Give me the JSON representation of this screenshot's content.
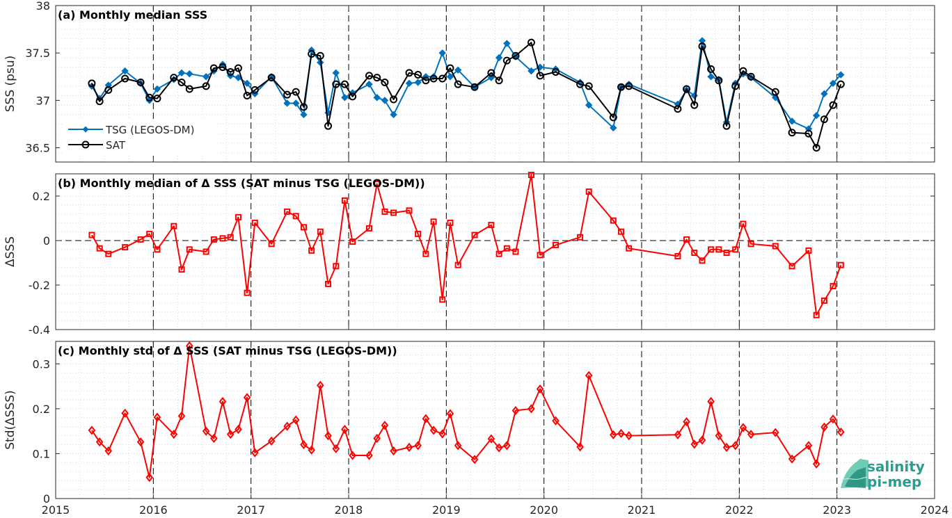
{
  "chart_data": [
    {
      "type": "line",
      "title": "(a) Monthly median SSS",
      "ylabel": "SSS (psu)",
      "xlim": [
        2015,
        2024
      ],
      "ylim": [
        36.35,
        38
      ],
      "yticks": [
        36.5,
        37,
        37.5,
        38
      ],
      "ytick_labels": [
        "36.5",
        "37",
        "37.5",
        "38"
      ],
      "grid": true,
      "legend_position": "bottom-left",
      "series": [
        {
          "name": "TSG (LEGOS-DM)",
          "color": "#0072BD",
          "marker": "diamond-filled",
          "x": [
            2015.37,
            2015.45,
            2015.54,
            2015.71,
            2015.87,
            2015.96,
            2016.04,
            2016.21,
            2016.29,
            2016.37,
            2016.54,
            2016.62,
            2016.71,
            2016.79,
            2016.87,
            2016.96,
            2017.04,
            2017.21,
            2017.37,
            2017.46,
            2017.54,
            2017.62,
            2017.71,
            2017.79,
            2017.87,
            2017.96,
            2018.04,
            2018.21,
            2018.29,
            2018.37,
            2018.46,
            2018.62,
            2018.71,
            2018.79,
            2018.87,
            2018.96,
            2019.04,
            2019.12,
            2019.29,
            2019.46,
            2019.54,
            2019.62,
            2019.71,
            2019.87,
            2019.96,
            2020.12,
            2020.37,
            2020.46,
            2020.71,
            2020.79,
            2020.87,
            2021.37,
            2021.46,
            2021.54,
            2021.62,
            2021.71,
            2021.79,
            2021.87,
            2021.96,
            2022.04,
            2022.12,
            2022.37,
            2022.54,
            2022.71,
            2022.79,
            2022.87,
            2022.96,
            2023.04
          ],
          "y": [
            37.15,
            37.02,
            37.16,
            37.31,
            37.18,
            37.0,
            37.12,
            37.22,
            37.29,
            37.28,
            37.25,
            37.31,
            37.38,
            37.26,
            37.24,
            37.18,
            37.07,
            37.25,
            36.97,
            36.97,
            36.85,
            37.53,
            37.4,
            36.87,
            37.29,
            37.03,
            37.08,
            37.17,
            37.03,
            37.0,
            36.85,
            37.18,
            37.19,
            37.25,
            37.25,
            37.5,
            37.25,
            37.32,
            37.14,
            37.24,
            37.45,
            37.6,
            37.46,
            37.31,
            37.35,
            37.33,
            37.19,
            36.95,
            36.71,
            37.14,
            37.17,
            36.96,
            37.11,
            37.05,
            37.63,
            37.25,
            37.22,
            36.77,
            37.18,
            37.28,
            37.24,
            37.03,
            36.78,
            36.7,
            36.84,
            37.07,
            37.18,
            37.27
          ]
        },
        {
          "name": "SAT",
          "color": "#000000",
          "marker": "circle-open",
          "x": [
            2015.37,
            2015.45,
            2015.54,
            2015.71,
            2015.87,
            2015.96,
            2016.04,
            2016.21,
            2016.29,
            2016.37,
            2016.54,
            2016.62,
            2016.71,
            2016.79,
            2016.87,
            2016.96,
            2017.04,
            2017.21,
            2017.37,
            2017.46,
            2017.54,
            2017.62,
            2017.71,
            2017.79,
            2017.87,
            2017.96,
            2018.04,
            2018.21,
            2018.29,
            2018.37,
            2018.46,
            2018.62,
            2018.71,
            2018.79,
            2018.87,
            2018.96,
            2019.04,
            2019.12,
            2019.29,
            2019.46,
            2019.54,
            2019.62,
            2019.71,
            2019.87,
            2019.96,
            2020.12,
            2020.37,
            2020.46,
            2020.71,
            2020.79,
            2020.87,
            2021.37,
            2021.46,
            2021.54,
            2021.62,
            2021.71,
            2021.79,
            2021.87,
            2021.96,
            2022.04,
            2022.12,
            2022.37,
            2022.54,
            2022.71,
            2022.79,
            2022.87,
            2022.96,
            2023.04
          ],
          "y": [
            37.18,
            36.99,
            37.11,
            37.23,
            37.19,
            37.03,
            37.02,
            37.24,
            37.19,
            37.12,
            37.15,
            37.34,
            37.35,
            37.3,
            37.34,
            37.05,
            37.11,
            37.24,
            37.06,
            37.09,
            36.93,
            37.49,
            37.47,
            36.73,
            37.17,
            37.17,
            37.04,
            37.26,
            37.24,
            37.19,
            37.01,
            37.29,
            37.27,
            37.21,
            37.23,
            37.23,
            37.34,
            37.17,
            37.14,
            37.29,
            37.21,
            37.42,
            37.47,
            37.61,
            37.26,
            37.3,
            37.17,
            37.15,
            36.82,
            37.14,
            37.15,
            36.91,
            37.12,
            36.95,
            37.57,
            37.33,
            37.21,
            36.73,
            37.15,
            37.31,
            37.25,
            37.09,
            36.66,
            36.65,
            36.5,
            36.8,
            36.95,
            37.17
          ]
        }
      ]
    },
    {
      "type": "line",
      "title": "(b) Monthly median of Δ SSS (SAT minus TSG (LEGOS-DM))",
      "ylabel": "ΔSSS",
      "xlim": [
        2015,
        2024
      ],
      "ylim": [
        -0.4,
        0.3
      ],
      "yticks": [
        -0.4,
        -0.2,
        0,
        0.2
      ],
      "ytick_labels": [
        "-0.4",
        "-0.2",
        "0",
        "0.2"
      ],
      "zero_line": true,
      "grid": true,
      "series": [
        {
          "color": "#FF0000",
          "marker": "square-open",
          "x": [
            2015.37,
            2015.45,
            2015.54,
            2015.71,
            2015.87,
            2015.96,
            2016.04,
            2016.21,
            2016.29,
            2016.37,
            2016.54,
            2016.62,
            2016.71,
            2016.79,
            2016.87,
            2016.96,
            2017.04,
            2017.21,
            2017.37,
            2017.46,
            2017.54,
            2017.62,
            2017.71,
            2017.79,
            2017.87,
            2017.96,
            2018.04,
            2018.21,
            2018.29,
            2018.37,
            2018.46,
            2018.62,
            2018.71,
            2018.79,
            2018.87,
            2018.96,
            2019.04,
            2019.12,
            2019.29,
            2019.46,
            2019.54,
            2019.62,
            2019.71,
            2019.87,
            2019.96,
            2020.12,
            2020.37,
            2020.46,
            2020.71,
            2020.79,
            2020.87,
            2021.37,
            2021.46,
            2021.54,
            2021.62,
            2021.71,
            2021.79,
            2021.87,
            2021.96,
            2022.04,
            2022.12,
            2022.37,
            2022.54,
            2022.71,
            2022.79,
            2022.87,
            2022.96,
            2023.04
          ],
          "y": [
            0.025,
            -0.035,
            -0.06,
            -0.03,
            0.005,
            0.03,
            -0.04,
            0.065,
            -0.13,
            -0.04,
            -0.05,
            0.005,
            0.01,
            0.015,
            0.105,
            -0.235,
            0.08,
            -0.015,
            0.13,
            0.11,
            0.06,
            -0.045,
            0.04,
            -0.195,
            -0.115,
            0.18,
            -0.005,
            0.055,
            0.255,
            0.13,
            0.125,
            0.135,
            0.03,
            -0.06,
            0.085,
            -0.265,
            0.08,
            -0.11,
            0.025,
            0.07,
            -0.06,
            -0.035,
            -0.05,
            0.295,
            -0.065,
            -0.02,
            0.015,
            0.22,
            0.09,
            0.04,
            -0.035,
            -0.07,
            0.005,
            -0.055,
            -0.09,
            -0.04,
            -0.04,
            -0.055,
            -0.04,
            0.075,
            -0.015,
            -0.025,
            -0.115,
            -0.045,
            -0.335,
            -0.27,
            -0.205,
            -0.11
          ]
        }
      ]
    },
    {
      "type": "line",
      "title": "(c) Monthly std of Δ SSS (SAT minus TSG (LEGOS-DM))",
      "ylabel": "Std(ΔSSS)",
      "xlim": [
        2015,
        2024
      ],
      "ylim": [
        0,
        0.35
      ],
      "yticks": [
        0,
        0.1,
        0.2,
        0.3
      ],
      "ytick_labels": [
        "0",
        "0.1",
        "0.2",
        "0.3"
      ],
      "xticks": [
        2015,
        2016,
        2017,
        2018,
        2019,
        2020,
        2021,
        2022,
        2023,
        2024
      ],
      "xtick_labels": [
        "2015",
        "2016",
        "2017",
        "2018",
        "2019",
        "2020",
        "2021",
        "2022",
        "2023",
        "2024"
      ],
      "grid": true,
      "series": [
        {
          "color": "#FF0000",
          "marker": "diamond-open",
          "x": [
            2015.37,
            2015.45,
            2015.54,
            2015.71,
            2015.87,
            2015.96,
            2016.04,
            2016.21,
            2016.29,
            2016.37,
            2016.54,
            2016.62,
            2016.71,
            2016.79,
            2016.87,
            2016.96,
            2017.04,
            2017.21,
            2017.37,
            2017.46,
            2017.54,
            2017.62,
            2017.71,
            2017.79,
            2017.87,
            2017.96,
            2018.04,
            2018.21,
            2018.29,
            2018.37,
            2018.46,
            2018.62,
            2018.71,
            2018.79,
            2018.87,
            2018.96,
            2019.04,
            2019.12,
            2019.29,
            2019.46,
            2019.54,
            2019.62,
            2019.71,
            2019.87,
            2019.96,
            2020.12,
            2020.37,
            2020.46,
            2020.71,
            2020.79,
            2020.87,
            2021.37,
            2021.46,
            2021.54,
            2021.62,
            2021.71,
            2021.79,
            2021.87,
            2021.96,
            2022.04,
            2022.12,
            2022.37,
            2022.54,
            2022.71,
            2022.79,
            2022.87,
            2022.96,
            2023.04
          ],
          "y": [
            0.152,
            0.126,
            0.106,
            0.19,
            0.126,
            0.047,
            0.181,
            0.143,
            0.184,
            0.34,
            0.15,
            0.134,
            0.216,
            0.143,
            0.154,
            0.225,
            0.102,
            0.128,
            0.161,
            0.175,
            0.12,
            0.108,
            0.252,
            0.14,
            0.111,
            0.154,
            0.096,
            0.096,
            0.134,
            0.163,
            0.106,
            0.114,
            0.118,
            0.178,
            0.152,
            0.144,
            0.189,
            0.118,
            0.087,
            0.133,
            0.113,
            0.118,
            0.196,
            0.2,
            0.244,
            0.173,
            0.115,
            0.274,
            0.142,
            0.145,
            0.14,
            0.142,
            0.171,
            0.121,
            0.13,
            0.216,
            0.14,
            0.114,
            0.118,
            0.158,
            0.143,
            0.147,
            0.088,
            0.118,
            0.077,
            0.159,
            0.177,
            0.148
          ]
        }
      ]
    }
  ],
  "logo": {
    "line1": "salinity",
    "line2": "pi-mep",
    "color": "#2a9d8f"
  }
}
